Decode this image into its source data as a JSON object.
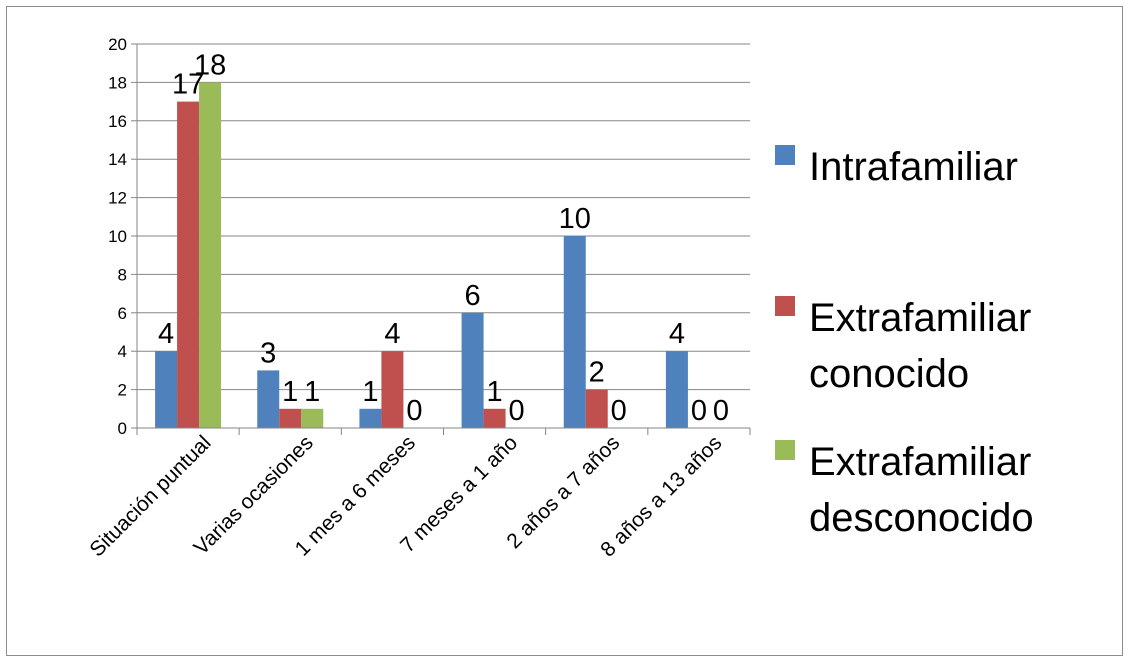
{
  "chart_data": {
    "type": "bar",
    "categories": [
      "Situación puntual",
      "Varias ocasiones",
      "1 mes a 6 meses",
      "7 meses a 1 año",
      "2 años a 7 años",
      "8 años a 13 años"
    ],
    "series": [
      {
        "name": "Intrafamiliar",
        "legend_lines": [
          "Intrafamiliar"
        ],
        "color": "#4f81bd",
        "values": [
          4,
          3,
          1,
          6,
          10,
          4
        ]
      },
      {
        "name": "Extrafamiliar conocido",
        "legend_lines": [
          "Extrafamiliar",
          "conocido"
        ],
        "color": "#c0504d",
        "values": [
          17,
          1,
          4,
          1,
          2,
          0
        ]
      },
      {
        "name": "Extrafamiliar desconocido",
        "legend_lines": [
          "Extrafamiliar",
          "desconocido"
        ],
        "color": "#9bbb59",
        "values": [
          18,
          1,
          0,
          0,
          0,
          0
        ]
      }
    ],
    "data_labels": [
      [
        "4",
        "3",
        "1",
        "6",
        "10",
        "4"
      ],
      [
        "17",
        "1",
        "4",
        "1",
        "2",
        "0"
      ],
      [
        "18",
        "1",
        "0",
        "0",
        "0",
        "0"
      ]
    ],
    "yticks": [
      "0",
      "2",
      "4",
      "6",
      "8",
      "10",
      "12",
      "14",
      "16",
      "18",
      "20"
    ],
    "ylim": [
      0,
      20
    ],
    "grid": true,
    "legend_position": "right",
    "title": "",
    "xlabel": "",
    "ylabel": ""
  }
}
